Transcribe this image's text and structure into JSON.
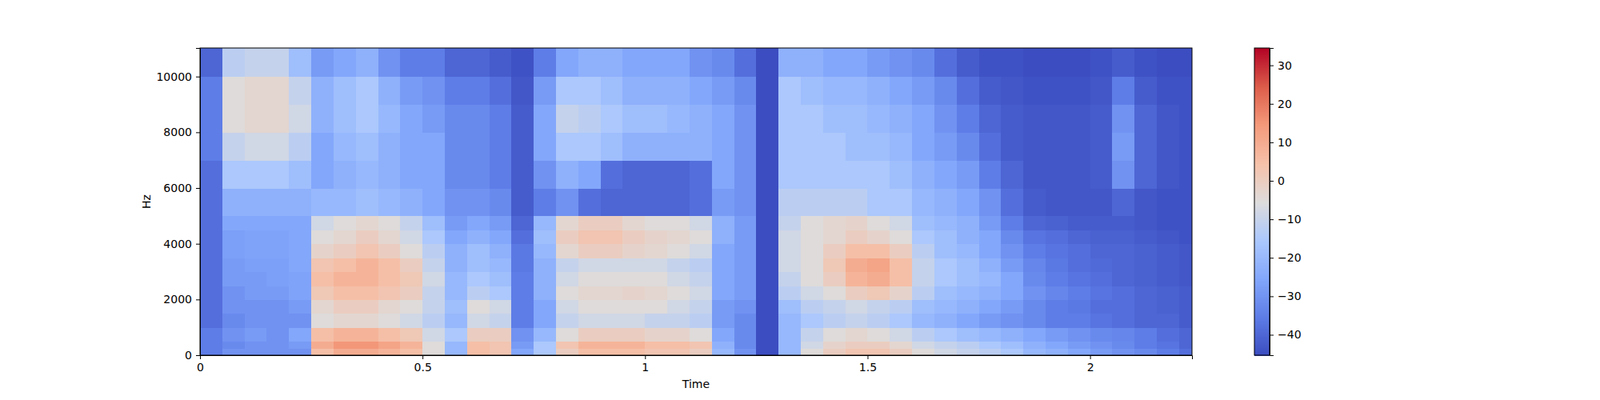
{
  "chart_data": {
    "type": "heatmap",
    "x_label": "Time",
    "y_label": "Hz",
    "xlim": [
      0,
      2.229
    ],
    "ylim": [
      0,
      11025
    ],
    "xticks": [
      0,
      0.5,
      1,
      1.5,
      2
    ],
    "yticks": [
      0,
      2000,
      4000,
      6000,
      8000,
      10000
    ],
    "x_bins": [
      0,
      0.05,
      0.1,
      0.15,
      0.2,
      0.25,
      0.3,
      0.35,
      0.4,
      0.45,
      0.5,
      0.55,
      0.6,
      0.65,
      0.7,
      0.75,
      0.8,
      0.85,
      0.9,
      0.95,
      1,
      1.05,
      1.1,
      1.15,
      1.2,
      1.25,
      1.3,
      1.35,
      1.4,
      1.45,
      1.5,
      1.55,
      1.6,
      1.65,
      1.7,
      1.75,
      1.8,
      1.85,
      1.9,
      1.95,
      2,
      2.05,
      2.1,
      2.15,
      2.2,
      2.229
    ],
    "y_bins": [
      0,
      250,
      500,
      1000,
      1500,
      2000,
      2500,
      3000,
      3500,
      4000,
      4500,
      5000,
      6000,
      7000,
      8000,
      9000,
      10000,
      11025
    ],
    "cells": [
      [
        -35,
        -30,
        -30,
        -30,
        -30,
        5,
        10,
        10,
        8,
        5,
        -5,
        -20,
        5,
        3,
        -25,
        -15,
        0,
        5,
        5,
        5,
        3,
        3,
        0,
        -20,
        -30,
        -45,
        -20,
        -5,
        0,
        3,
        3,
        0,
        -5,
        -8,
        -10,
        -12,
        -15,
        -20,
        -22,
        -25,
        -28,
        -30,
        -32,
        -35,
        -38
      ],
      [
        -35,
        -32,
        -30,
        -30,
        -28,
        10,
        15,
        15,
        12,
        8,
        -5,
        -20,
        5,
        3,
        -28,
        -15,
        3,
        8,
        8,
        8,
        5,
        5,
        3,
        -22,
        -32,
        -45,
        -20,
        -8,
        -2,
        0,
        0,
        -3,
        -8,
        -10,
        -12,
        -15,
        -18,
        -22,
        -25,
        -28,
        -30,
        -32,
        -35,
        -37,
        -40
      ],
      [
        -35,
        -30,
        -28,
        -30,
        -25,
        5,
        8,
        8,
        5,
        2,
        -8,
        -15,
        0,
        0,
        -30,
        -20,
        -5,
        0,
        0,
        0,
        -2,
        -2,
        -5,
        -25,
        -32,
        -45,
        -20,
        -10,
        -5,
        -3,
        -5,
        -8,
        -12,
        -15,
        -18,
        -20,
        -22,
        -25,
        -28,
        -30,
        -32,
        -33,
        -35,
        -38,
        -40
      ],
      [
        -38,
        -32,
        -30,
        -30,
        -30,
        -5,
        -3,
        -3,
        -5,
        -8,
        -12,
        -20,
        -8,
        -10,
        -35,
        -25,
        -10,
        -8,
        -8,
        -8,
        -10,
        -10,
        -12,
        -28,
        -32,
        -45,
        -20,
        -15,
        -12,
        -10,
        -12,
        -15,
        -20,
        -22,
        -25,
        -28,
        -30,
        -32,
        -35,
        -35,
        -37,
        -38,
        -40,
        -40,
        -42
      ],
      [
        -38,
        -30,
        -30,
        -30,
        -28,
        -3,
        0,
        0,
        -3,
        -5,
        -10,
        -18,
        -5,
        -8,
        -35,
        -25,
        -8,
        -5,
        -5,
        -5,
        -5,
        -8,
        -10,
        -28,
        -30,
        -45,
        -18,
        -12,
        -10,
        -8,
        -10,
        -12,
        -18,
        -20,
        -22,
        -25,
        -28,
        -32,
        -35,
        -36,
        -38,
        -38,
        -40,
        -41,
        -42
      ],
      [
        -38,
        -30,
        -28,
        -28,
        -26,
        2,
        5,
        5,
        3,
        0,
        -10,
        -20,
        -12,
        -15,
        -35,
        -22,
        -5,
        -3,
        -3,
        -2,
        -3,
        -5,
        -8,
        -25,
        -28,
        -45,
        -12,
        -8,
        -5,
        0,
        2,
        -2,
        -12,
        -18,
        -20,
        -22,
        -25,
        -30,
        -33,
        -35,
        -37,
        -38,
        -40,
        -41,
        -42
      ],
      [
        -38,
        -28,
        -28,
        -27,
        -26,
        5,
        8,
        8,
        5,
        2,
        -8,
        -20,
        -15,
        -18,
        -35,
        -22,
        -8,
        -5,
        -5,
        -5,
        -5,
        -8,
        -10,
        -25,
        -28,
        -45,
        -10,
        -5,
        0,
        8,
        10,
        5,
        -10,
        -15,
        -18,
        -20,
        -25,
        -32,
        -35,
        -37,
        -38,
        -40,
        -41,
        -42,
        -43
      ],
      [
        -38,
        -28,
        -27,
        -27,
        -25,
        3,
        5,
        8,
        5,
        0,
        -10,
        -22,
        -18,
        -20,
        -36,
        -22,
        -10,
        -8,
        -8,
        -8,
        -8,
        -10,
        -12,
        -25,
        -28,
        -45,
        -8,
        -5,
        2,
        10,
        12,
        5,
        -10,
        -15,
        -18,
        -22,
        -28,
        -33,
        -36,
        -38,
        -39,
        -40,
        -41,
        -42,
        -43
      ],
      [
        -38,
        -27,
        -26,
        -26,
        -25,
        -2,
        0,
        3,
        0,
        -5,
        -12,
        -22,
        -18,
        -22,
        -36,
        -20,
        -3,
        0,
        0,
        -2,
        -3,
        -5,
        -8,
        -25,
        -28,
        -45,
        -8,
        -5,
        0,
        5,
        5,
        0,
        -12,
        -18,
        -20,
        -25,
        -30,
        -35,
        -37,
        -38,
        -40,
        -40,
        -41,
        -42,
        -43
      ],
      [
        -38,
        -27,
        -26,
        -26,
        -25,
        -5,
        -3,
        0,
        -3,
        -8,
        -15,
        -25,
        -22,
        -25,
        -38,
        -18,
        0,
        3,
        3,
        0,
        -2,
        -3,
        -5,
        -22,
        -28,
        -45,
        -8,
        -5,
        -3,
        0,
        -2,
        -5,
        -15,
        -18,
        -22,
        -25,
        -32,
        -37,
        -38,
        -40,
        -41,
        -41,
        -42,
        -43,
        -44
      ],
      [
        -38,
        -25,
        -25,
        -25,
        -25,
        -8,
        -5,
        -3,
        -5,
        -10,
        -18,
        -28,
        -25,
        -28,
        -40,
        -20,
        -3,
        0,
        0,
        -3,
        -5,
        -5,
        -8,
        -22,
        -28,
        -45,
        -10,
        -5,
        -3,
        -2,
        -5,
        -8,
        -18,
        -20,
        -22,
        -28,
        -35,
        -40,
        -41,
        -42,
        -42,
        -42,
        -43,
        -44,
        -44
      ],
      [
        -38,
        -22,
        -22,
        -22,
        -22,
        -20,
        -20,
        -18,
        -20,
        -22,
        -25,
        -30,
        -30,
        -32,
        -42,
        -35,
        -30,
        -38,
        -40,
        -40,
        -40,
        -40,
        -38,
        -28,
        -30,
        -45,
        -12,
        -12,
        -12,
        -12,
        -15,
        -15,
        -20,
        -22,
        -25,
        -30,
        -38,
        -42,
        -43,
        -43,
        -43,
        -40,
        -43,
        -44,
        -44
      ],
      [
        -38,
        -15,
        -15,
        -15,
        -18,
        -25,
        -22,
        -20,
        -22,
        -25,
        -25,
        -32,
        -32,
        -35,
        -42,
        -30,
        -22,
        -25,
        -38,
        -40,
        -40,
        -40,
        -38,
        -25,
        -30,
        -45,
        -15,
        -15,
        -15,
        -15,
        -15,
        -18,
        -22,
        -25,
        -28,
        -35,
        -40,
        -43,
        -43,
        -43,
        -42,
        -30,
        -40,
        -43,
        -44
      ],
      [
        -35,
        -10,
        -8,
        -8,
        -12,
        -25,
        -20,
        -18,
        -22,
        -25,
        -25,
        -32,
        -32,
        -35,
        -42,
        -25,
        -15,
        -15,
        -18,
        -22,
        -22,
        -22,
        -22,
        -25,
        -30,
        -45,
        -15,
        -15,
        -15,
        -18,
        -18,
        -20,
        -25,
        -28,
        -32,
        -38,
        -42,
        -43,
        -43,
        -43,
        -42,
        -28,
        -40,
        -43,
        -44
      ],
      [
        -35,
        -5,
        -3,
        -3,
        -8,
        -22,
        -18,
        -15,
        -20,
        -25,
        -28,
        -32,
        -32,
        -35,
        -42,
        -25,
        -10,
        -12,
        -15,
        -18,
        -18,
        -20,
        -22,
        -25,
        -30,
        -45,
        -15,
        -15,
        -18,
        -18,
        -20,
        -22,
        -25,
        -30,
        -35,
        -40,
        -42,
        -43,
        -43,
        -43,
        -42,
        -30,
        -40,
        -43,
        -44
      ],
      [
        -35,
        -5,
        -3,
        -3,
        -10,
        -22,
        -18,
        -15,
        -22,
        -28,
        -30,
        -35,
        -35,
        -38,
        -43,
        -28,
        -15,
        -15,
        -18,
        -22,
        -22,
        -22,
        -25,
        -28,
        -32,
        -45,
        -15,
        -18,
        -20,
        -20,
        -22,
        -25,
        -28,
        -32,
        -38,
        -42,
        -43,
        -44,
        -44,
        -44,
        -43,
        -35,
        -42,
        -44,
        -44
      ],
      [
        -40,
        -12,
        -10,
        -10,
        -18,
        -28,
        -25,
        -22,
        -30,
        -35,
        -35,
        -40,
        -40,
        -42,
        -44,
        -35,
        -25,
        -22,
        -22,
        -25,
        -25,
        -25,
        -30,
        -32,
        -38,
        -45,
        -22,
        -22,
        -25,
        -25,
        -28,
        -30,
        -32,
        -38,
        -42,
        -44,
        -44,
        -45,
        -45,
        -45,
        -44,
        -42,
        -44,
        -45,
        -45
      ]
    ],
    "colorbar": {
      "range": [
        -45.3,
        34.5
      ],
      "ticks": [
        {
          "value": -40,
          "label": "−40"
        },
        {
          "value": -30,
          "label": "−30"
        },
        {
          "value": -20,
          "label": "−20"
        },
        {
          "value": -10,
          "label": "−10"
        },
        0,
        10,
        20,
        30
      ]
    }
  }
}
